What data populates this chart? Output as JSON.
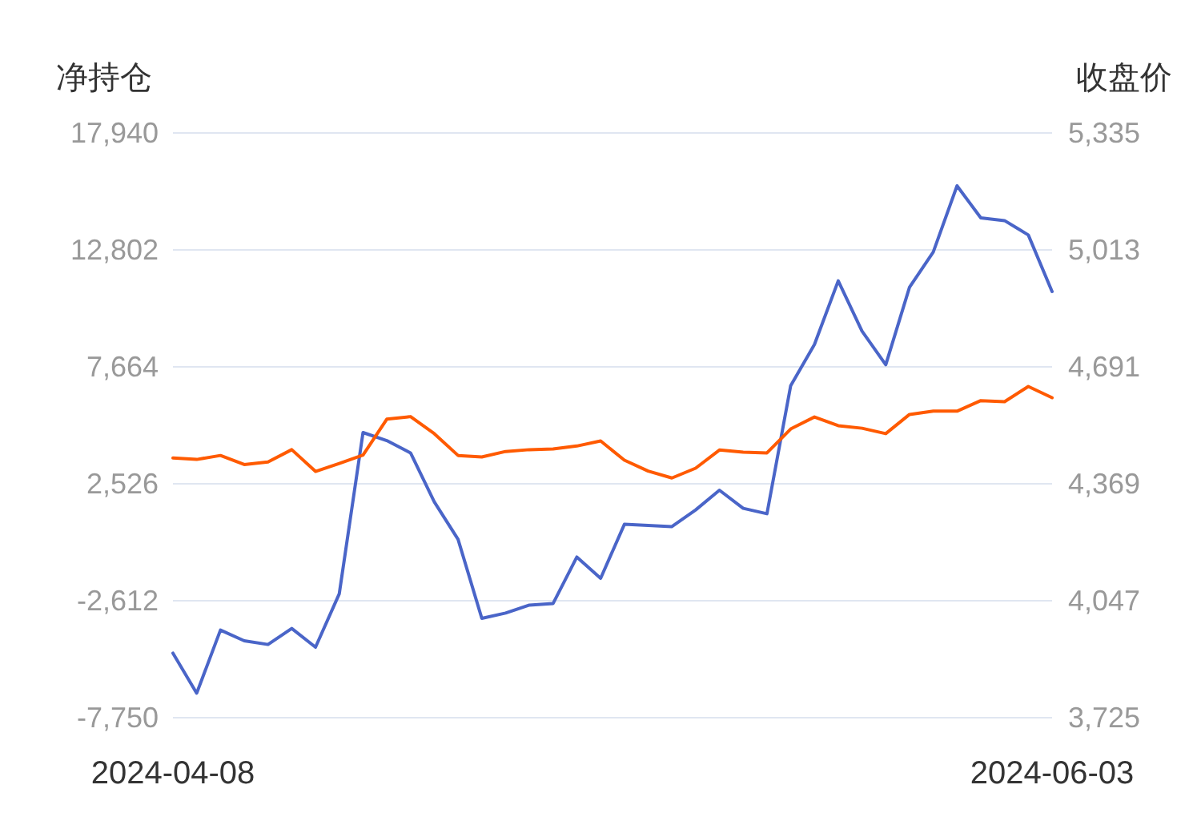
{
  "chart_data": {
    "type": "line",
    "ylabel": "净持仓",
    "y2label": "收盘价",
    "categories": [
      "2024-04-08",
      null,
      null,
      null,
      null,
      null,
      null,
      null,
      null,
      null,
      null,
      null,
      null,
      null,
      null,
      null,
      null,
      null,
      null,
      null,
      null,
      null,
      null,
      null,
      null,
      null,
      null,
      null,
      null,
      null,
      null,
      null,
      null,
      null,
      null,
      null,
      null,
      "2024-06-03"
    ],
    "series": [
      {
        "color": "#4a65c8",
        "values": [
          -4914,
          -6673,
          -3900,
          -4372,
          -4534,
          -3830,
          -4653,
          -2309,
          4778,
          4426,
          3884,
          1731,
          84,
          -3386,
          -3154,
          -2802,
          -2732,
          -691,
          -1627,
          745,
          696,
          647,
          1379,
          2244,
          1449,
          1210,
          6840,
          8649,
          11444,
          9234,
          7755,
          11162,
          12710,
          15617,
          14210,
          14090,
          13457,
          10972
        ]
      },
      {
        "color": "#ff5a00",
        "axis": "y2",
        "values": [
          4440,
          4436,
          4447,
          4422,
          4429,
          4463,
          4403,
          4425,
          4448,
          4547,
          4554,
          4507,
          4447,
          4443,
          4458,
          4463,
          4465,
          4473,
          4487,
          4434,
          4404,
          4385,
          4412,
          4462,
          4456,
          4454,
          4520,
          4553,
          4529,
          4522,
          4507,
          4560,
          4569,
          4569,
          4598,
          4595,
          4637,
          4606
        ]
      }
    ],
    "ylim": [
      -7750,
      17940
    ],
    "yticks": [
      {
        "value": -7750,
        "label": "-7,750"
      },
      {
        "value": -2612,
        "label": "-2,612"
      },
      {
        "value": 2526,
        "label": "2,526"
      },
      {
        "value": 7664,
        "label": "7,664"
      },
      {
        "value": 12802,
        "label": "12,802"
      },
      {
        "value": 17940,
        "label": "17,940"
      }
    ],
    "y2lim": [
      3725,
      5335
    ],
    "y2ticks": [
      {
        "value": 3725,
        "label": "3,725"
      },
      {
        "value": 4047,
        "label": "4,047"
      },
      {
        "value": 4369,
        "label": "4,369"
      },
      {
        "value": 4691,
        "label": "4,691"
      },
      {
        "value": 5013,
        "label": "5,013"
      },
      {
        "value": 5335,
        "label": "5,335"
      }
    ],
    "grid": "y"
  }
}
